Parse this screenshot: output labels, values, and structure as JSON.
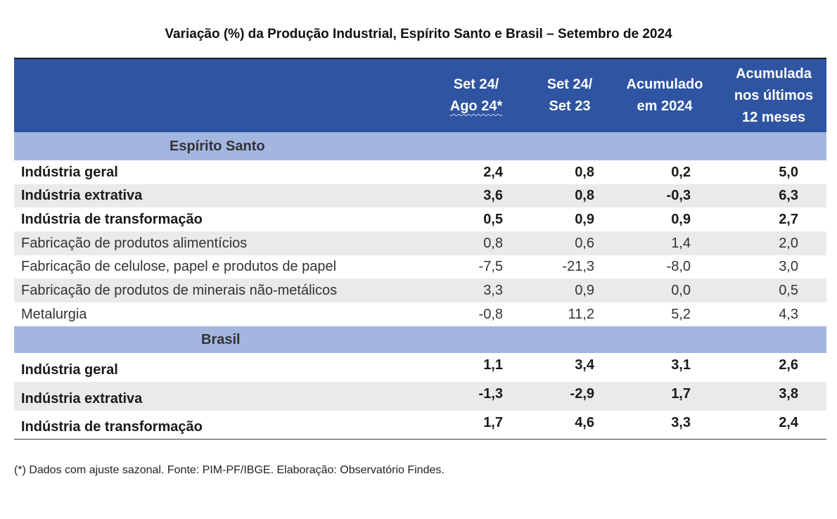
{
  "title": "Variação (%) da Produção Industrial, Espírito Santo e Brasil – Setembro de 2024",
  "chart_data": {
    "type": "table",
    "title": "Variação (%) da Produção Industrial, Espírito Santo e Brasil – Setembro de 2024",
    "columns": [
      {
        "line1": "Set 24/",
        "line2": "Ago 24*",
        "line3": ""
      },
      {
        "line1": "Set 24/",
        "line2": "Set 23",
        "line3": ""
      },
      {
        "line1": "Acumulado",
        "line2": "em 2024",
        "line3": ""
      },
      {
        "line1": "Acumulada",
        "line2": "nos últimos",
        "line3": "12 meses"
      }
    ],
    "sections": [
      {
        "name": "Espírito Santo",
        "rows": [
          {
            "label": "Indústria geral",
            "bold": true,
            "values": [
              "2,4",
              "0,8",
              "0,2",
              "5,0"
            ]
          },
          {
            "label": "Indústria extrativa",
            "bold": true,
            "values": [
              "3,6",
              "0,8",
              "-0,3",
              "6,3"
            ]
          },
          {
            "label": "Indústria de transformação",
            "bold": true,
            "values": [
              "0,5",
              "0,9",
              "0,9",
              "2,7"
            ]
          },
          {
            "label": "Fabricação de produtos alimentícios",
            "bold": false,
            "values": [
              "0,8",
              "0,6",
              "1,4",
              "2,0"
            ]
          },
          {
            "label": "Fabricação de celulose, papel e produtos de papel",
            "bold": false,
            "values": [
              "-7,5",
              "-21,3",
              "-8,0",
              "3,0"
            ]
          },
          {
            "label": "Fabricação de produtos de minerais não-metálicos",
            "bold": false,
            "values": [
              "3,3",
              "0,9",
              "0,0",
              "0,5"
            ]
          },
          {
            "label": "Metalurgia",
            "bold": false,
            "values": [
              "-0,8",
              "11,2",
              "5,2",
              "4,3"
            ]
          }
        ]
      },
      {
        "name": "Brasil",
        "rows": [
          {
            "label": "Indústria geral",
            "bold": true,
            "values": [
              "1,1",
              "3,4",
              "3,1",
              "2,6"
            ]
          },
          {
            "label": "Indústria extrativa",
            "bold": true,
            "values": [
              "-1,3",
              "-2,9",
              "1,7",
              "3,8"
            ]
          },
          {
            "label": "Indústria de transformação",
            "bold": true,
            "values": [
              "1,7",
              "4,6",
              "3,3",
              "2,4"
            ]
          }
        ]
      }
    ]
  },
  "footnote": "(*) Dados com ajuste sazonal. Fonte: PIM-PF/IBGE. Elaboração: Observatório Findes.",
  "colors": {
    "header_bg": "#2f54a2",
    "section_bg": "#a3b6e0",
    "stripe_bg": "#eaeaea"
  }
}
